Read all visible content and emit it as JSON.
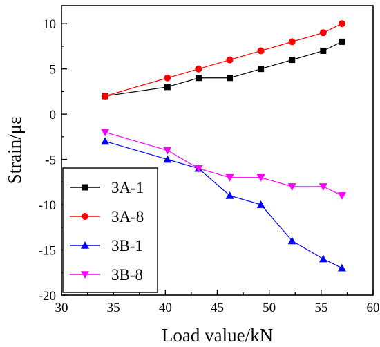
{
  "chart_data": {
    "type": "line",
    "title": "",
    "xlabel": "Load value/kN",
    "ylabel": "Strain/με",
    "xlim": [
      30,
      60
    ],
    "ylim": [
      -20,
      12
    ],
    "x_ticks": [
      30,
      35,
      40,
      45,
      50,
      55,
      60
    ],
    "y_ticks": [
      -20,
      -15,
      -10,
      -5,
      0,
      5,
      10
    ],
    "grid": false,
    "legend_position": "bottom-left",
    "x": [
      34.2,
      40.2,
      43.2,
      46.2,
      49.2,
      52.2,
      55.2,
      57.0
    ],
    "series": [
      {
        "name": "3A-1",
        "color": "#000000",
        "marker": "square",
        "values": [
          2,
          3,
          4,
          4,
          5,
          6,
          7,
          8
        ]
      },
      {
        "name": "3A-8",
        "color": "#ff0000",
        "marker": "circle",
        "values": [
          2,
          4,
          5,
          6,
          7,
          8,
          9,
          10
        ]
      },
      {
        "name": "3B-1",
        "color": "#0000ff",
        "marker": "triangle-up",
        "values": [
          -3,
          -5,
          -6,
          -9,
          -10,
          -14,
          -16,
          -17
        ]
      },
      {
        "name": "3B-8",
        "color": "#ff00ff",
        "marker": "triangle-down",
        "values": [
          -2,
          -4,
          -6,
          -7,
          -7,
          -8,
          -8,
          -9
        ]
      }
    ]
  }
}
